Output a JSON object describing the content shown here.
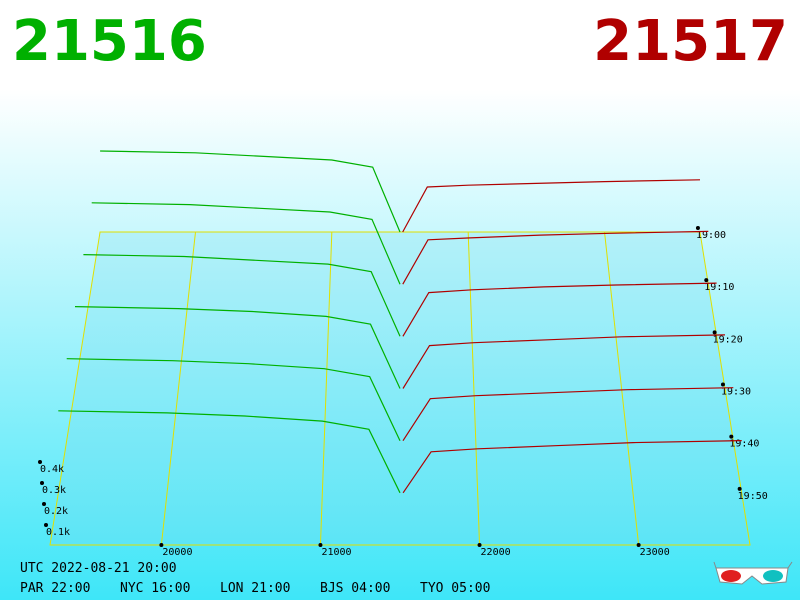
{
  "chart_data": {
    "type": "depth3d",
    "bid_title": "21516",
    "ask_title": "21517",
    "bid_color": "#00b000",
    "ask_color": "#b00000",
    "xlim": [
      19300,
      23700
    ],
    "xticks": [
      20000,
      21000,
      22000,
      23000
    ],
    "zticks": [
      {
        "value": 100,
        "label": "0.1k"
      },
      {
        "value": 200,
        "label": "0.2k"
      },
      {
        "value": 300,
        "label": "0.3k"
      },
      {
        "value": 400,
        "label": "0.4k"
      }
    ],
    "times": [
      "19:00",
      "19:10",
      "19:20",
      "19:30",
      "19:40",
      "19:50"
    ],
    "bid_prices": [
      19300,
      20000,
      20500,
      21000,
      21300,
      21500
    ],
    "ask_prices": [
      21520,
      21700,
      22000,
      22500,
      23000,
      23700
    ],
    "snapshots": [
      {
        "bids": [
          450,
          440,
          420,
          400,
          360,
          0
        ],
        "asks": [
          0,
          250,
          260,
          270,
          280,
          290
        ]
      },
      {
        "bids": [
          440,
          430,
          410,
          390,
          350,
          0
        ],
        "asks": [
          0,
          240,
          250,
          265,
          275,
          285
        ]
      },
      {
        "bids": [
          430,
          420,
          400,
          380,
          340,
          0
        ],
        "asks": [
          0,
          230,
          245,
          260,
          270,
          280
        ]
      },
      {
        "bids": [
          420,
          410,
          395,
          370,
          330,
          0
        ],
        "asks": [
          0,
          220,
          235,
          250,
          265,
          275
        ]
      },
      {
        "bids": [
          410,
          400,
          385,
          360,
          320,
          0
        ],
        "asks": [
          0,
          210,
          225,
          240,
          255,
          265
        ]
      },
      {
        "bids": [
          400,
          390,
          375,
          350,
          310,
          0
        ],
        "asks": [
          0,
          200,
          215,
          230,
          245,
          255
        ]
      }
    ]
  },
  "footer": {
    "utc": "UTC 2022-08-21 20:00",
    "par": "PAR 22:00",
    "nyc": "NYC 16:00",
    "lon": "LON 21:00",
    "bjs": "BJS 04:00",
    "tyo": "TYO 05:00"
  }
}
